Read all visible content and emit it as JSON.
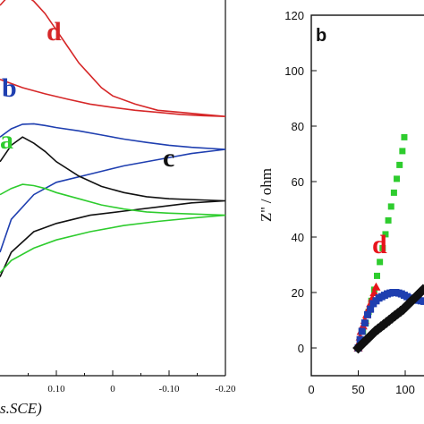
{
  "chart_data": [
    {
      "panel": "a",
      "type": "line",
      "xlabel": "E (V vs.SCE)",
      "xlabel_visible": "s.SCE)",
      "x_ticks": [
        "0.10",
        "0",
        "-0.10",
        "-0.20"
      ],
      "xlim": [
        0.2,
        -0.2
      ],
      "ylim": [
        0,
        1
      ],
      "grid": false,
      "series": [
        {
          "name": "d",
          "color": "#d62728",
          "x": [
            0.2,
            0.18,
            0.16,
            0.14,
            0.12,
            0.1,
            0.08,
            0.06,
            0.04,
            0.02,
            0.0,
            -0.04,
            -0.08,
            -0.12,
            -0.16,
            -0.2
          ],
          "y": [
            0.9,
            0.93,
            0.93,
            0.91,
            0.88,
            0.84,
            0.8,
            0.76,
            0.73,
            0.7,
            0.68,
            0.66,
            0.645,
            0.64,
            0.635,
            0.63
          ],
          "x_back": [
            -0.2,
            -0.16,
            -0.12,
            -0.08,
            -0.04,
            0.0,
            0.04,
            0.08,
            0.12,
            0.16,
            0.2
          ],
          "y_back": [
            0.63,
            0.632,
            0.635,
            0.64,
            0.645,
            0.652,
            0.66,
            0.672,
            0.685,
            0.7,
            0.72
          ]
        },
        {
          "name": "b",
          "color": "#1f3fb0",
          "x": [
            0.2,
            0.18,
            0.16,
            0.14,
            0.12,
            0.1,
            0.06,
            0.02,
            -0.02,
            -0.06,
            -0.1,
            -0.14,
            -0.2
          ],
          "y": [
            0.58,
            0.6,
            0.611,
            0.612,
            0.608,
            0.603,
            0.595,
            0.585,
            0.575,
            0.567,
            0.56,
            0.555,
            0.55
          ],
          "x_back": [
            -0.2,
            -0.14,
            -0.08,
            -0.02,
            0.04,
            0.1,
            0.14,
            0.18,
            0.2
          ],
          "y_back": [
            0.55,
            0.54,
            0.525,
            0.51,
            0.49,
            0.47,
            0.44,
            0.38,
            0.3
          ]
        },
        {
          "name": "c",
          "color": "#111111",
          "x": [
            0.2,
            0.18,
            0.16,
            0.14,
            0.12,
            0.1,
            0.06,
            0.02,
            -0.02,
            -0.06,
            -0.1,
            -0.14,
            -0.2
          ],
          "y": [
            0.52,
            0.56,
            0.58,
            0.565,
            0.545,
            0.52,
            0.485,
            0.46,
            0.445,
            0.435,
            0.43,
            0.428,
            0.425
          ],
          "x_back": [
            -0.2,
            -0.14,
            -0.08,
            -0.02,
            0.04,
            0.1,
            0.14,
            0.18,
            0.2
          ],
          "y_back": [
            0.425,
            0.42,
            0.41,
            0.4,
            0.39,
            0.37,
            0.35,
            0.3,
            0.24
          ]
        },
        {
          "name": "a",
          "color": "#2ecc2e",
          "x": [
            0.2,
            0.18,
            0.16,
            0.14,
            0.12,
            0.1,
            0.06,
            0.02,
            -0.02,
            -0.06,
            -0.1,
            -0.14,
            -0.2
          ],
          "y": [
            0.44,
            0.455,
            0.465,
            0.462,
            0.455,
            0.445,
            0.43,
            0.415,
            0.405,
            0.398,
            0.395,
            0.393,
            0.39
          ],
          "x_back": [
            -0.2,
            -0.14,
            -0.08,
            -0.02,
            0.04,
            0.1,
            0.14,
            0.18,
            0.2
          ],
          "y_back": [
            0.39,
            0.383,
            0.375,
            0.365,
            0.35,
            0.33,
            0.31,
            0.28,
            0.25
          ]
        }
      ]
    },
    {
      "panel": "b",
      "type": "scatter",
      "xlabel": "",
      "ylabel": "Z'' / ohm",
      "xlim": [
        0,
        120
      ],
      "ylim": [
        -10,
        120
      ],
      "x_ticks": [
        0,
        50,
        100
      ],
      "y_ticks": [
        0,
        20,
        40,
        60,
        80,
        100,
        120
      ],
      "grid": false,
      "series": [
        {
          "name": "a",
          "color": "#2ecc2e",
          "x": [
            50,
            52,
            55,
            58,
            61,
            64,
            67,
            70,
            73,
            76,
            79,
            82,
            85,
            88,
            91,
            94,
            97,
            99
          ],
          "y": [
            0,
            3,
            6,
            9,
            13,
            17,
            21,
            26,
            31,
            36,
            41,
            46,
            51,
            56,
            61,
            66,
            71,
            76
          ]
        },
        {
          "name": "d",
          "color": "#e8141c",
          "x": [
            50,
            51,
            52,
            53,
            55,
            57,
            59,
            61,
            63,
            65,
            67,
            69
          ],
          "y": [
            0,
            2,
            4,
            6,
            8,
            10,
            12,
            14,
            16,
            18,
            20,
            22
          ]
        },
        {
          "name": "b",
          "color": "#1f3fb0",
          "x": [
            50,
            52,
            54,
            57,
            60,
            63,
            66,
            69,
            72,
            75,
            78,
            81,
            84,
            87,
            90,
            93,
            96,
            99,
            102,
            105,
            108,
            111,
            114,
            117,
            120
          ],
          "y": [
            0,
            3,
            6,
            9,
            12,
            14,
            16,
            17,
            18,
            18.5,
            19,
            19.5,
            19.8,
            20,
            20,
            19.8,
            19.5,
            19,
            18.5,
            18,
            17.8,
            17.5,
            17.2,
            17,
            16.8
          ]
        },
        {
          "name": "c",
          "color": "#111111",
          "x": [
            50,
            53,
            56,
            59,
            62,
            65,
            68,
            71,
            74,
            77,
            80,
            83,
            86,
            89,
            92,
            95,
            98,
            101,
            104,
            107,
            110,
            113,
            116,
            119
          ],
          "y": [
            0,
            1,
            2,
            3,
            4,
            5,
            6,
            6.8,
            7.6,
            8.4,
            9.2,
            10,
            10.8,
            11.6,
            12.4,
            13.2,
            14,
            15,
            16,
            17,
            18,
            19,
            20,
            21
          ]
        }
      ]
    }
  ]
}
